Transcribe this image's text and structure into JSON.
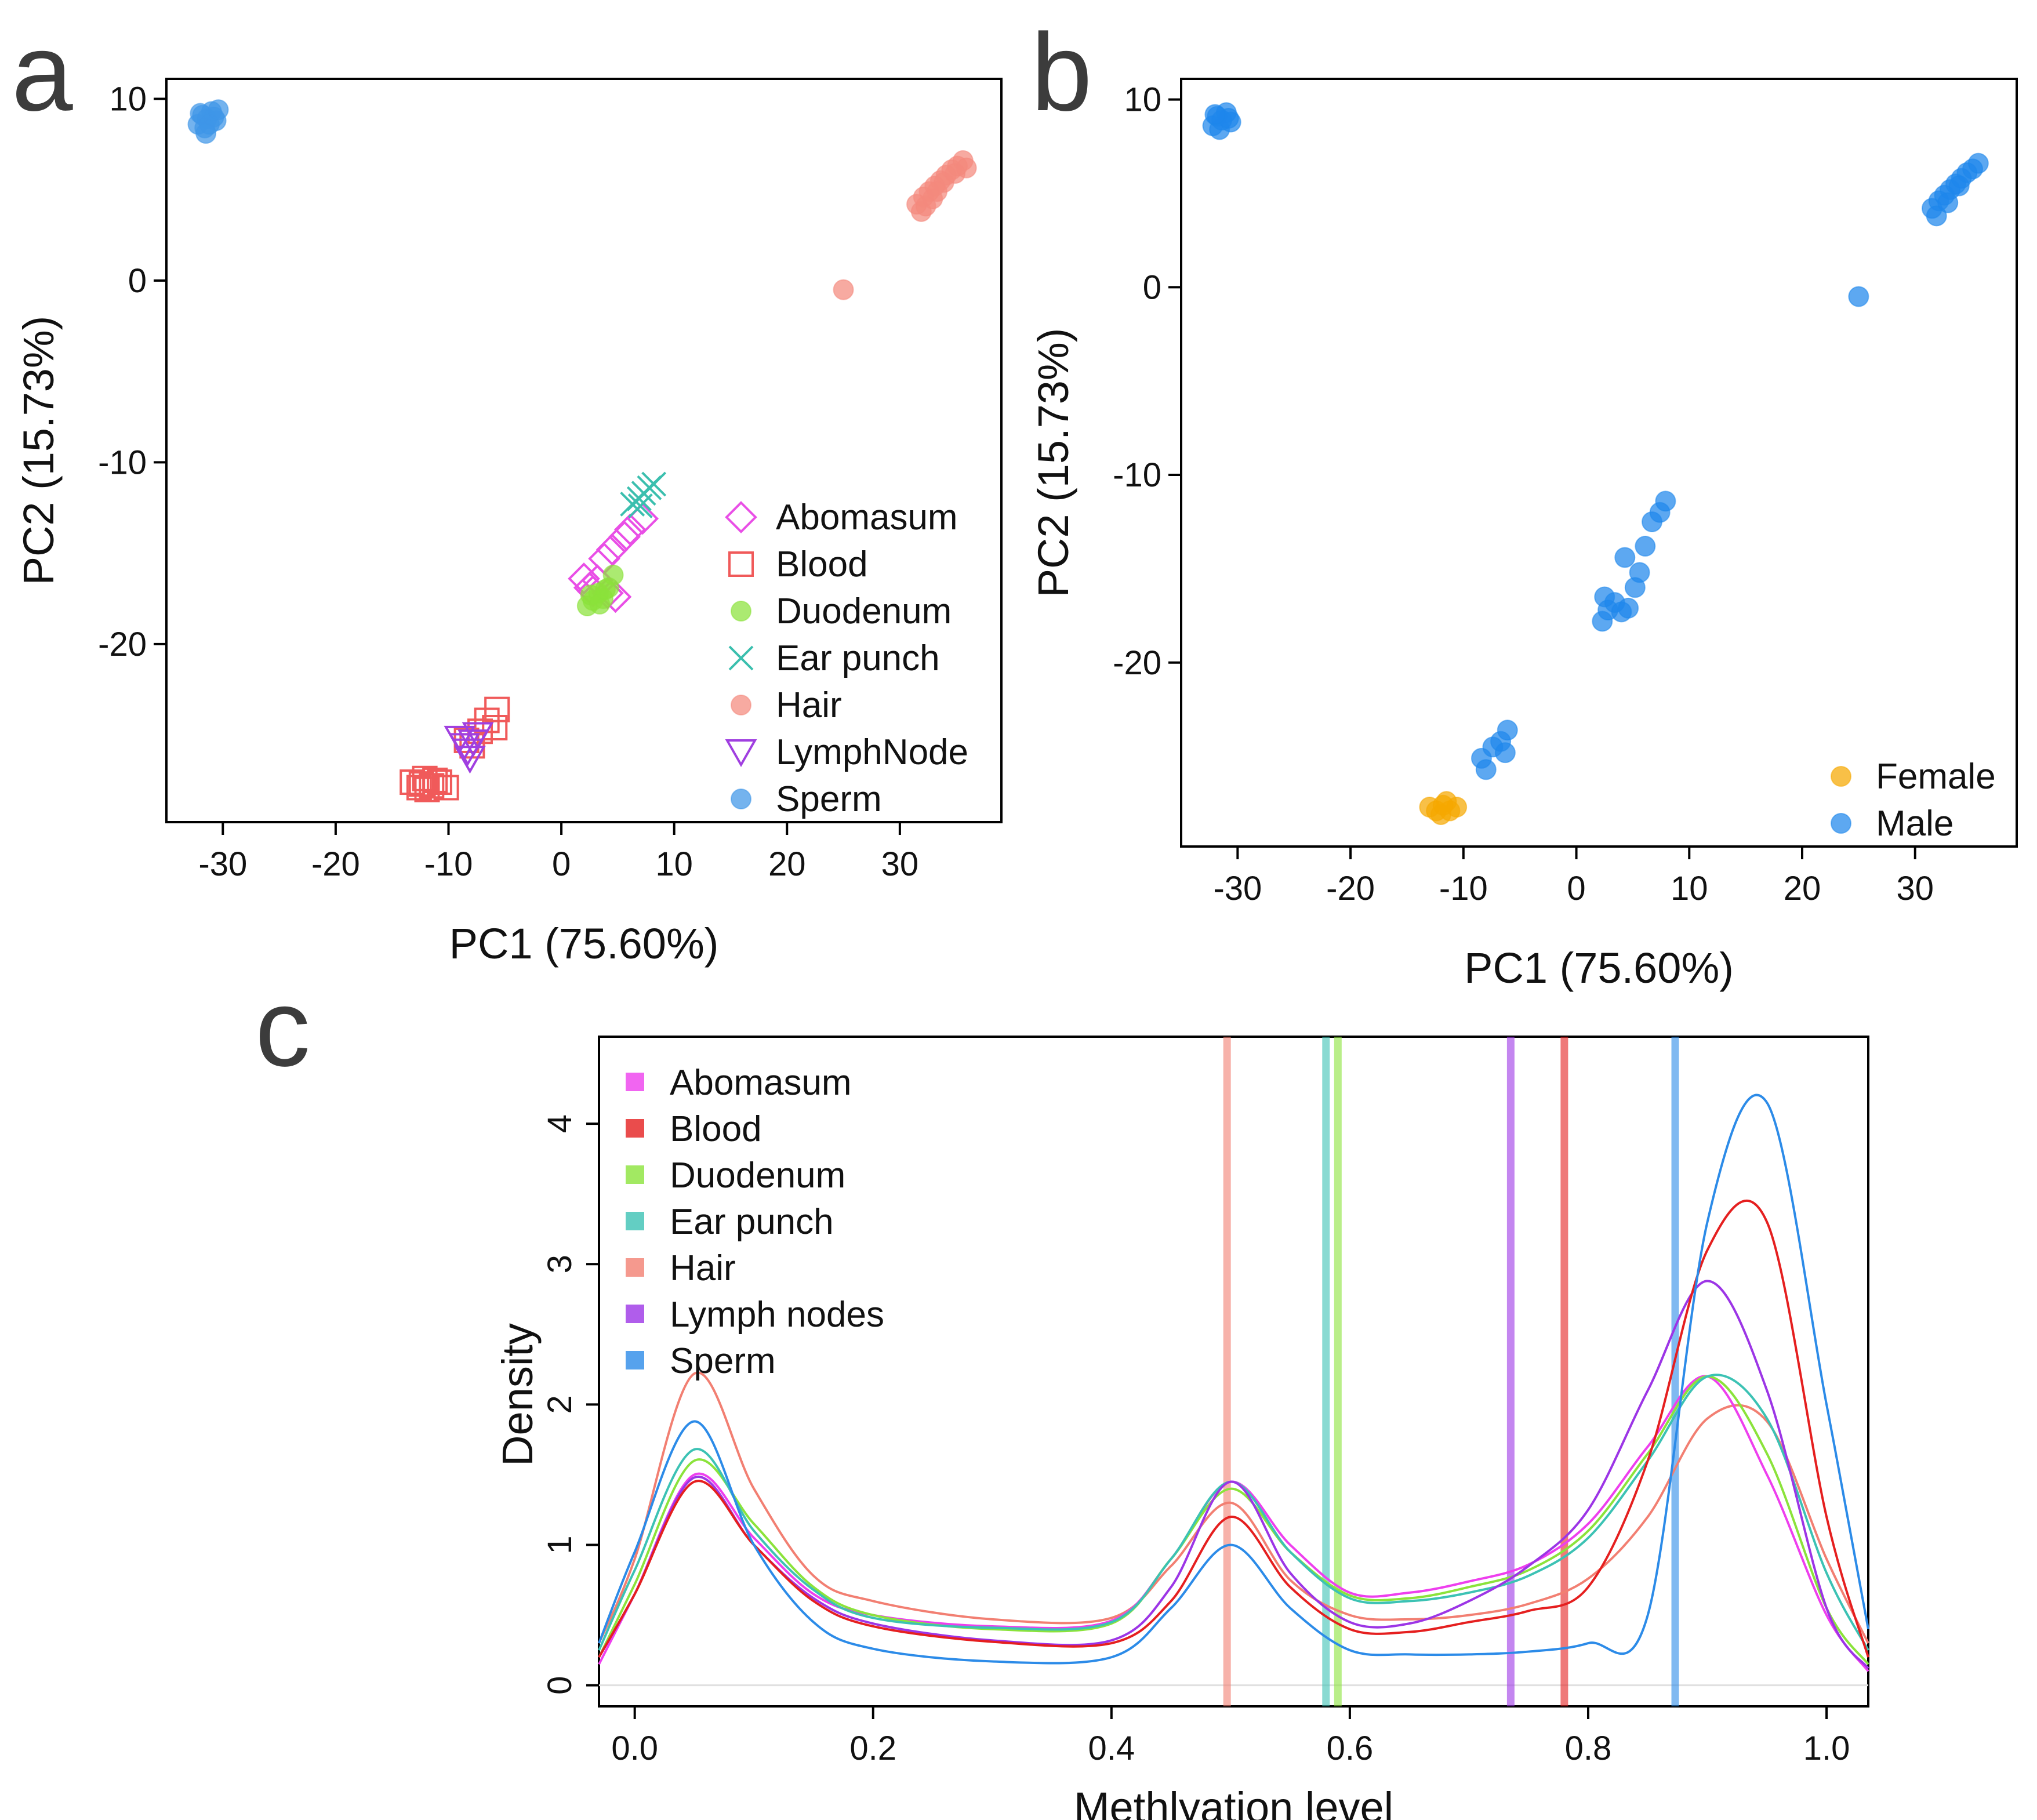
{
  "chart_data": [
    {
      "panel": "a",
      "type": "scatter",
      "xlabel": "PC1 (75.60%)",
      "ylabel": "PC2 (15.73%)",
      "xlim": [
        -35,
        39
      ],
      "ylim": [
        -29.8,
        11.1
      ],
      "xticks": [
        -30,
        -20,
        -10,
        0,
        10,
        20,
        30
      ],
      "yticks": [
        -20,
        -10,
        0,
        10
      ],
      "legend_position": "bottom-right",
      "series": [
        {
          "name": "Abomasum",
          "marker": "diamond",
          "color": "#E94FE6",
          "points": [
            [
              2,
              -16.4
            ],
            [
              2.5,
              -16.9
            ],
            [
              3.2,
              -16.5
            ],
            [
              4.1,
              -17.2
            ],
            [
              4.8,
              -17.4
            ],
            [
              4.5,
              -14.8
            ],
            [
              5.6,
              -14.1
            ],
            [
              6.1,
              -13.7
            ],
            [
              7.2,
              -13.1
            ],
            [
              3.8,
              -15.3
            ],
            [
              2.8,
              -17.1
            ]
          ]
        },
        {
          "name": "Blood",
          "marker": "square",
          "color": "#F05A5A",
          "points": [
            [
              -13.2,
              -27.6
            ],
            [
              -12.6,
              -27.9
            ],
            [
              -12.1,
              -27.4
            ],
            [
              -11.5,
              -27.8
            ],
            [
              -10.8,
              -27.6
            ],
            [
              -10.2,
              -27.9
            ],
            [
              -11.9,
              -28.0
            ],
            [
              -12.4,
              -27.7
            ],
            [
              -11.2,
              -27.5
            ],
            [
              -8.4,
              -25.3
            ],
            [
              -7.9,
              -25.6
            ],
            [
              -7.2,
              -24.8
            ],
            [
              -6.6,
              -24.2
            ],
            [
              -5.9,
              -24.6
            ],
            [
              -5.7,
              -23.6
            ]
          ]
        },
        {
          "name": "Duodenum",
          "marker": "circle-filled",
          "color": "#8BE23A",
          "points": [
            [
              2.3,
              -17.9
            ],
            [
              2.8,
              -17.6
            ],
            [
              3.3,
              -17.2
            ],
            [
              3.7,
              -17.5
            ],
            [
              4.2,
              -16.9
            ],
            [
              2.6,
              -17.3
            ],
            [
              3.4,
              -17.8
            ],
            [
              4.6,
              -16.2
            ],
            [
              3.9,
              -17.0
            ]
          ]
        },
        {
          "name": "Ear punch",
          "marker": "x",
          "color": "#3BBFAE",
          "points": [
            [
              6.3,
              -12.3
            ],
            [
              6.9,
              -12.0
            ],
            [
              7.3,
              -11.7
            ],
            [
              7.8,
              -11.4
            ],
            [
              8.2,
              -11.2
            ],
            [
              7.0,
              -12.4
            ]
          ]
        },
        {
          "name": "Hair",
          "marker": "circle-filled",
          "color": "#F4897D",
          "points": [
            [
              31.5,
              4.2
            ],
            [
              32.1,
              4.6
            ],
            [
              32.6,
              4.9
            ],
            [
              33.1,
              5.2
            ],
            [
              33.6,
              5.5
            ],
            [
              34.1,
              5.8
            ],
            [
              34.6,
              6.1
            ],
            [
              35.1,
              6.3
            ],
            [
              35.6,
              6.6
            ],
            [
              31.9,
              3.8
            ],
            [
              32.9,
              4.5
            ],
            [
              33.9,
              5.4
            ],
            [
              34.9,
              5.9
            ],
            [
              33.3,
              4.9
            ],
            [
              32.3,
              4.1
            ],
            [
              35.9,
              6.2
            ],
            [
              25,
              -0.5
            ]
          ]
        },
        {
          "name": "LymphNode",
          "marker": "triangle-down",
          "color": "#A03FE0",
          "points": [
            [
              -9,
              -25.2
            ],
            [
              -8.6,
              -25.6
            ],
            [
              -8.3,
              -25.9
            ],
            [
              -7.8,
              -25.4
            ],
            [
              -8.1,
              -26.3
            ],
            [
              -7.4,
              -25.0
            ]
          ]
        },
        {
          "name": "Sperm",
          "marker": "circle-filled",
          "color": "#3E95E8",
          "points": [
            [
              -32.2,
              8.6
            ],
            [
              -31.8,
              9.1
            ],
            [
              -31.4,
              8.9
            ],
            [
              -31.0,
              9.3
            ],
            [
              -30.6,
              8.8
            ],
            [
              -31.6,
              8.4
            ],
            [
              -30.8,
              9.0
            ],
            [
              -31.2,
              8.6
            ],
            [
              -32.0,
              9.2
            ],
            [
              -30.4,
              9.4
            ],
            [
              -31.5,
              8.1
            ]
          ]
        }
      ]
    },
    {
      "panel": "b",
      "type": "scatter",
      "xlabel": "PC1 (75.60%)",
      "ylabel": "PC2 (15.73%)",
      "xlim": [
        -35,
        39
      ],
      "ylim": [
        -29.8,
        11.1
      ],
      "xticks": [
        -30,
        -20,
        -10,
        0,
        10,
        20,
        30
      ],
      "yticks": [
        -20,
        -10,
        0,
        10
      ],
      "legend_position": "bottom-right",
      "series": [
        {
          "name": "Female",
          "marker": "circle-filled",
          "color": "#F5A700",
          "points": [
            [
              -13,
              -27.7
            ],
            [
              -12.4,
              -27.9
            ],
            [
              -11.8,
              -27.6
            ],
            [
              -11.2,
              -27.9
            ],
            [
              -10.6,
              -27.7
            ],
            [
              -12.0,
              -28.1
            ],
            [
              -11.5,
              -27.4
            ]
          ]
        },
        {
          "name": "Male",
          "marker": "circle-filled",
          "color": "#1E86EB",
          "points": [
            [
              -32.2,
              8.6
            ],
            [
              -31.8,
              9.1
            ],
            [
              -31.4,
              8.9
            ],
            [
              -31.0,
              9.3
            ],
            [
              -30.6,
              8.8
            ],
            [
              -31.6,
              8.4
            ],
            [
              -30.8,
              9.0
            ],
            [
              -32.0,
              9.2
            ],
            [
              31.5,
              4.2
            ],
            [
              32.1,
              4.6
            ],
            [
              32.6,
              4.9
            ],
            [
              33.1,
              5.2
            ],
            [
              33.6,
              5.5
            ],
            [
              34.1,
              5.8
            ],
            [
              34.6,
              6.1
            ],
            [
              35.1,
              6.3
            ],
            [
              35.6,
              6.6
            ],
            [
              31.9,
              3.8
            ],
            [
              33.9,
              5.4
            ],
            [
              32.9,
              4.5
            ],
            [
              25,
              -0.5
            ],
            [
              2.3,
              -17.8
            ],
            [
              2.8,
              -17.2
            ],
            [
              3.4,
              -16.8
            ],
            [
              4.0,
              -17.3
            ],
            [
              4.6,
              -17.1
            ],
            [
              2.5,
              -16.5
            ],
            [
              5.2,
              -16.0
            ],
            [
              5.6,
              -15.2
            ],
            [
              4.3,
              -14.4
            ],
            [
              6.1,
              -13.8
            ],
            [
              6.7,
              -12.5
            ],
            [
              7.4,
              -12.0
            ],
            [
              7.9,
              -11.4
            ],
            [
              -8.4,
              -25.1
            ],
            [
              -8.0,
              -25.7
            ],
            [
              -7.4,
              -24.5
            ],
            [
              -6.7,
              -24.2
            ],
            [
              -6.1,
              -23.6
            ],
            [
              -6.3,
              -24.8
            ]
          ]
        }
      ]
    },
    {
      "panel": "c",
      "type": "line",
      "title": "",
      "xlabel": "Methlyation level",
      "ylabel": "Density",
      "xlim": [
        -0.03,
        1.035
      ],
      "ylim": [
        -0.15,
        4.62
      ],
      "xticks": [
        0.0,
        0.2,
        0.4,
        0.6,
        0.8,
        1.0
      ],
      "xtick_labels": [
        "0.0",
        "0.2",
        "0.4",
        "0.6",
        "0.8",
        "1.0"
      ],
      "yticks": [
        0,
        1,
        2,
        3,
        4
      ],
      "legend_position": "top-left",
      "density_x": [
        -0.03,
        0.0,
        0.05,
        0.1,
        0.15,
        0.2,
        0.3,
        0.4,
        0.45,
        0.5,
        0.55,
        0.6,
        0.65,
        0.7,
        0.75,
        0.8,
        0.85,
        0.9,
        0.95,
        1.0,
        1.035
      ],
      "series": [
        {
          "name": "Abomasum",
          "color": "#EE3FEE",
          "mean_line": null,
          "values": [
            0.15,
            0.65,
            1.5,
            1.05,
            0.65,
            0.5,
            0.42,
            0.46,
            0.9,
            1.45,
            1.0,
            0.66,
            0.66,
            0.74,
            0.86,
            1.15,
            1.7,
            2.2,
            1.5,
            0.5,
            0.1
          ]
        },
        {
          "name": "Blood",
          "color": "#E51F1F",
          "mean_line": 0.78,
          "values": [
            0.2,
            0.65,
            1.45,
            1.0,
            0.6,
            0.42,
            0.31,
            0.3,
            0.6,
            1.2,
            0.7,
            0.4,
            0.38,
            0.45,
            0.53,
            0.7,
            1.6,
            3.1,
            3.3,
            1.2,
            0.2
          ]
        },
        {
          "name": "Duodenum",
          "color": "#8BE33B",
          "mean_line": 0.59,
          "values": [
            0.2,
            0.72,
            1.6,
            1.15,
            0.7,
            0.5,
            0.4,
            0.44,
            0.9,
            1.4,
            0.95,
            0.64,
            0.62,
            0.7,
            0.82,
            1.1,
            1.65,
            2.2,
            1.65,
            0.55,
            0.15
          ]
        },
        {
          "name": "Ear punch",
          "color": "#3CC2B4",
          "mean_line": 0.58,
          "values": [
            0.25,
            0.82,
            1.68,
            1.1,
            0.68,
            0.48,
            0.41,
            0.45,
            0.9,
            1.45,
            0.95,
            0.62,
            0.6,
            0.66,
            0.78,
            1.05,
            1.6,
            2.2,
            1.9,
            0.8,
            0.25
          ]
        },
        {
          "name": "Hair",
          "color": "#F27F72",
          "mean_line": 0.497,
          "values": [
            0.3,
            0.9,
            2.22,
            1.4,
            0.78,
            0.6,
            0.47,
            0.48,
            0.85,
            1.3,
            0.75,
            0.5,
            0.47,
            0.5,
            0.58,
            0.76,
            1.2,
            1.9,
            1.88,
            0.9,
            0.3
          ]
        },
        {
          "name": "Lymph nodes",
          "color": "#9C35E6",
          "mean_line": 0.735,
          "values": [
            0.2,
            0.65,
            1.48,
            1.0,
            0.62,
            0.44,
            0.32,
            0.32,
            0.7,
            1.45,
            0.8,
            0.45,
            0.44,
            0.6,
            0.85,
            1.25,
            2.1,
            2.88,
            2.1,
            0.55,
            0.12
          ]
        },
        {
          "name": "Sperm",
          "color": "#2C8BE8",
          "mean_line": 0.873,
          "values": [
            0.3,
            0.95,
            1.88,
            1.0,
            0.45,
            0.26,
            0.17,
            0.2,
            0.55,
            1.0,
            0.55,
            0.25,
            0.22,
            0.22,
            0.24,
            0.3,
            0.5,
            3.3,
            4.15,
            2.0,
            0.4
          ]
        }
      ]
    }
  ]
}
